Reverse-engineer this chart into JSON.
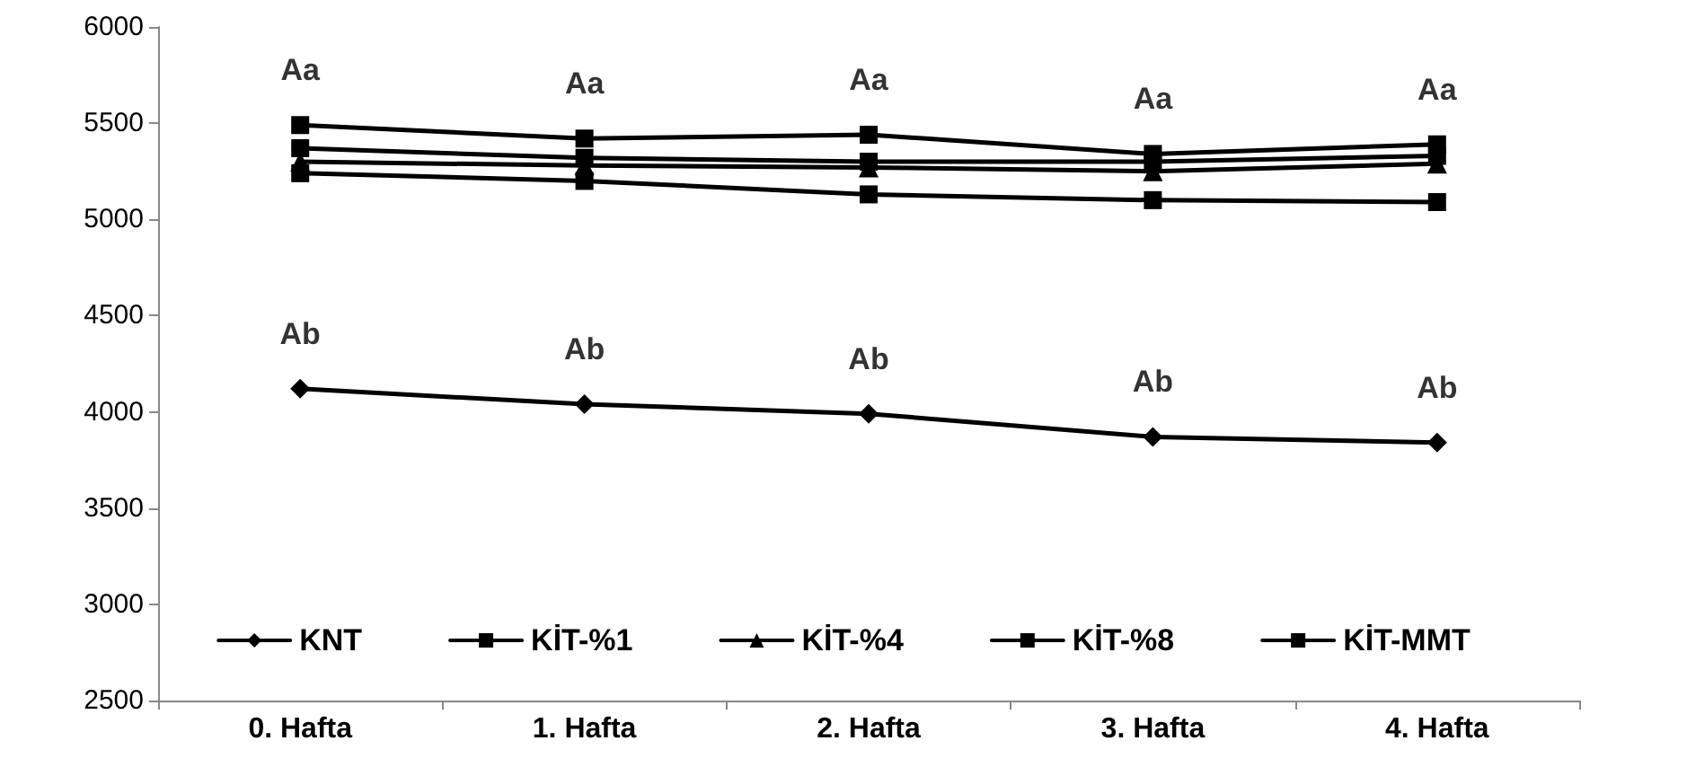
{
  "chart_data": {
    "type": "line",
    "categories": [
      "0. Hafta",
      "1. Hafta",
      "2. Hafta",
      "3. Hafta",
      "4. Hafta"
    ],
    "series": [
      {
        "name": "KNT",
        "color": "#000000",
        "marker": "diamond",
        "values": [
          4120,
          4040,
          3990,
          3870,
          3840
        ]
      },
      {
        "name": "KİT-%1",
        "color": "#000000",
        "marker": "square",
        "values": [
          5240,
          5200,
          5130,
          5100,
          5090
        ]
      },
      {
        "name": "KİT-%4",
        "color": "#000000",
        "marker": "triangle",
        "values": [
          5300,
          5280,
          5270,
          5250,
          5290
        ]
      },
      {
        "name": "KİT-%8",
        "color": "#000000",
        "marker": "square",
        "values": [
          5370,
          5320,
          5300,
          5300,
          5330
        ]
      },
      {
        "name": "KİT-MMT",
        "color": "#000000",
        "marker": "square",
        "values": [
          5490,
          5420,
          5440,
          5340,
          5390
        ]
      }
    ],
    "ylim": [
      2500,
      6000
    ],
    "yticks": [
      2500,
      3000,
      3500,
      4000,
      4500,
      5000,
      5500,
      6000
    ],
    "grid": false,
    "legend": "bottom",
    "annotations": [
      "Aa",
      "Aa",
      "Aa",
      "Aa",
      "Aa",
      "Ab",
      "Ab",
      "Ab",
      "Ab",
      "Ab"
    ]
  }
}
